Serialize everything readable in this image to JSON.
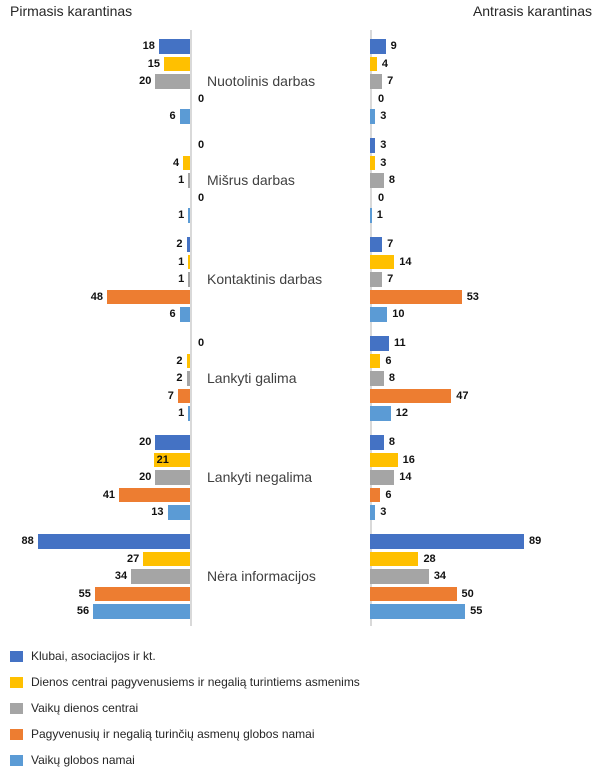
{
  "titles": {
    "left": "Pirmasis karantinas",
    "right": "Antrasis karantinas"
  },
  "chart_data": {
    "type": "bar",
    "layout": "butterfly-horizontal",
    "sides": [
      {
        "key": "pirmasis",
        "title": "Pirmasis karantinas",
        "direction": "left"
      },
      {
        "key": "antrasis",
        "title": "Antrasis karantinas",
        "direction": "right"
      }
    ],
    "categories": [
      "Nuotolinis darbas",
      "Mišrus darbas",
      "Kontaktinis darbas",
      "Lankyti galima",
      "Lankyti negalima",
      "Nėra informacijos"
    ],
    "series": [
      {
        "name": "Klubai, asociacijos ir kt.",
        "color": "#4472C4",
        "pirmasis": [
          18,
          0,
          2,
          0,
          20,
          88
        ],
        "antrasis": [
          9,
          3,
          7,
          11,
          8,
          89
        ]
      },
      {
        "name": "Dienos centrai pagyvenusiems ir negalią turintiems asmenims",
        "color": "#FFC000",
        "pirmasis": [
          15,
          4,
          1,
          2,
          21,
          27
        ],
        "antrasis": [
          4,
          3,
          14,
          6,
          16,
          28
        ]
      },
      {
        "name": "Vaikų dienos centrai",
        "color": "#A5A5A5",
        "pirmasis": [
          20,
          1,
          1,
          2,
          20,
          34
        ],
        "antrasis": [
          7,
          8,
          7,
          8,
          14,
          34
        ]
      },
      {
        "name": "Pagyvenusių ir negalią turinčių asmenų globos namai",
        "color": "#ED7D31",
        "pirmasis": [
          0,
          0,
          48,
          7,
          41,
          55
        ],
        "antrasis": [
          0,
          0,
          53,
          47,
          6,
          50
        ]
      },
      {
        "name": "Vaikų globos namai",
        "color": "#5B9BD5",
        "pirmasis": [
          6,
          1,
          6,
          1,
          13,
          56
        ],
        "antrasis": [
          3,
          1,
          10,
          12,
          3,
          55
        ]
      }
    ],
    "value_labels": "outside-end-bold",
    "special_inside_label": {
      "side": "pirmasis",
      "category_index": 4,
      "series_index": 1
    },
    "axis_color": "#D9D9D9",
    "value_axis_hidden": true,
    "legend_position": "bottom-left"
  }
}
